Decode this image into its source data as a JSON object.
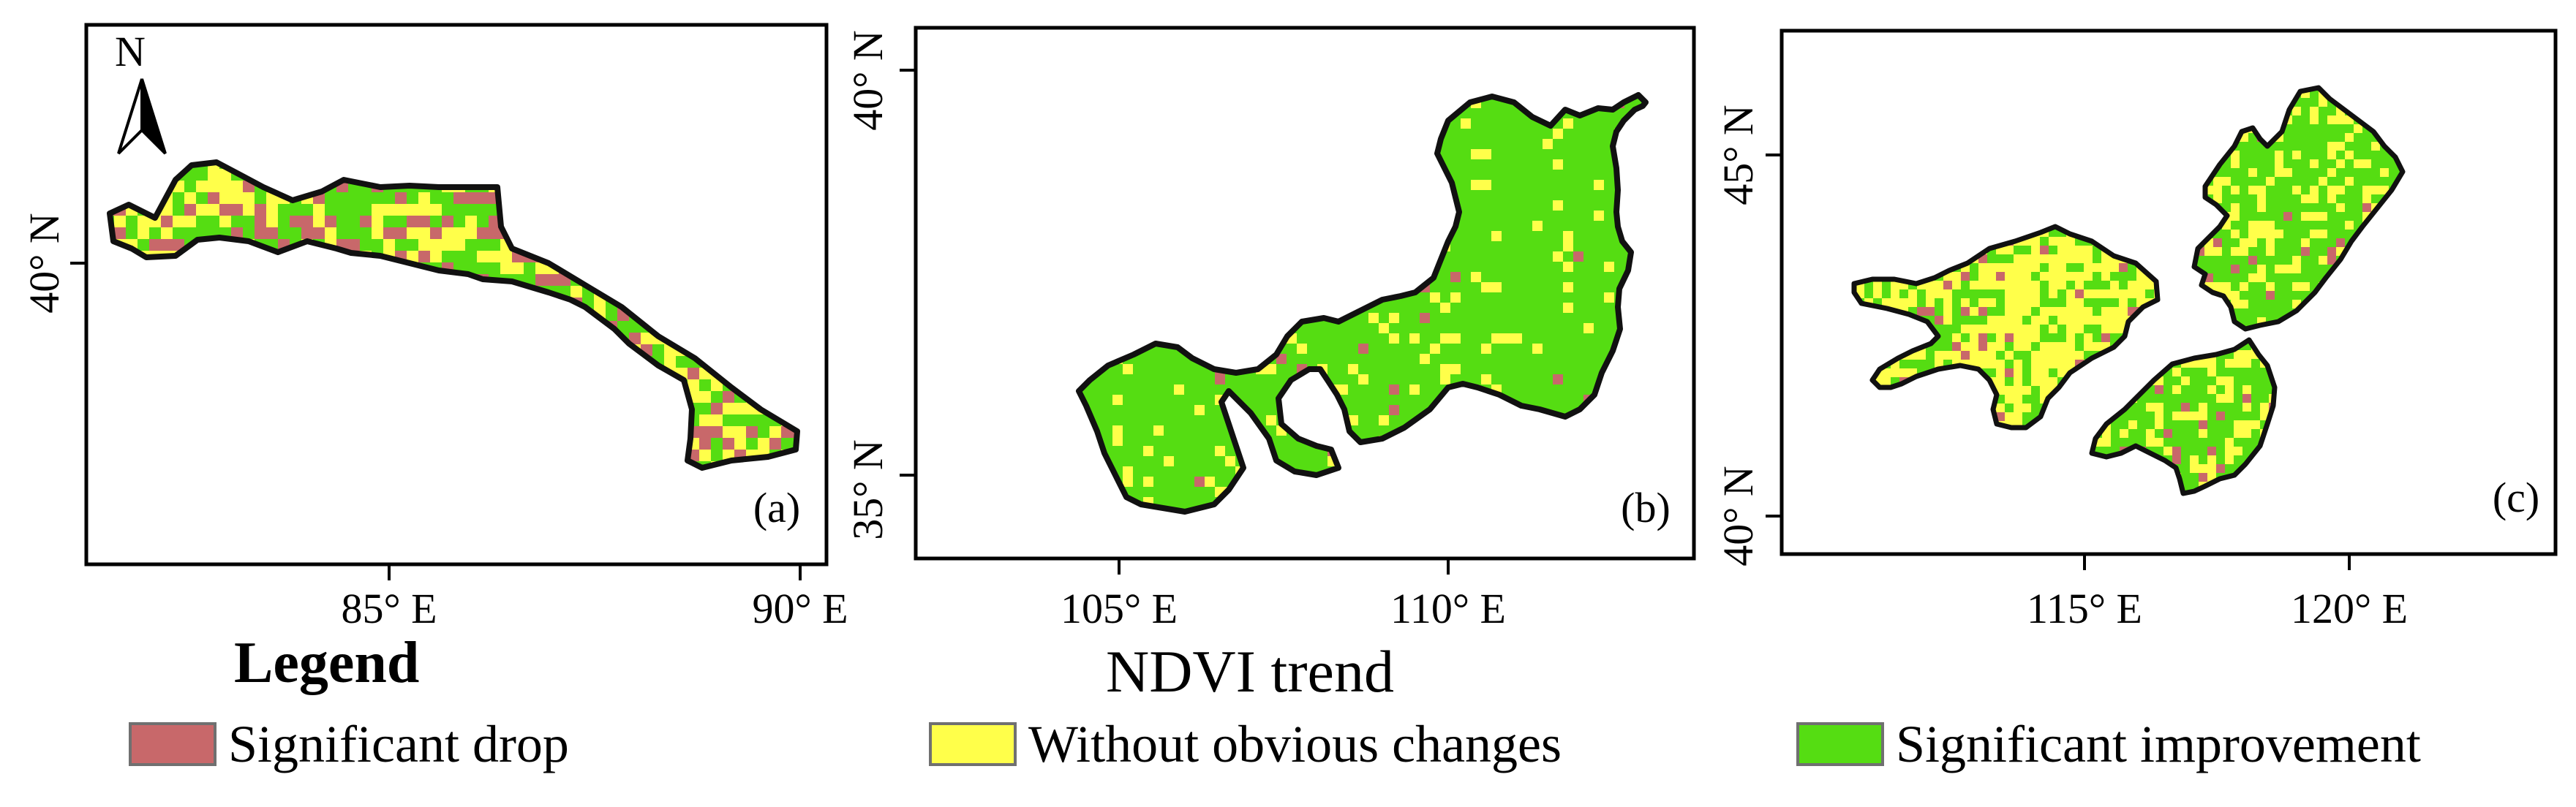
{
  "colors": {
    "significant_drop": "#c8686a",
    "without_obvious_changes": "#ffff4a",
    "significant_improvement": "#55dd12",
    "boundary": "#111111",
    "frame": "#000000"
  },
  "north_arrow": {
    "label": "N"
  },
  "panels": [
    {
      "tag": "(a)",
      "x_ticks": [
        "85° E",
        "90° E"
      ],
      "y_ticks": [
        "40° N"
      ]
    },
    {
      "tag": "(b)",
      "x_ticks": [
        "105° E",
        "110° E"
      ],
      "y_ticks": [
        "40° N",
        "35° N"
      ]
    },
    {
      "tag": "(c)",
      "x_ticks": [
        "115° E",
        "120° E"
      ],
      "y_ticks": [
        "45° N",
        "40° N"
      ]
    }
  ],
  "caption": "NDVI trend",
  "legend": {
    "title": "Legend",
    "items": [
      {
        "label": "Significant drop",
        "color_key": "significant_drop"
      },
      {
        "label": "Without obvious changes",
        "color_key": "without_obvious_changes"
      },
      {
        "label": "Significant improvement",
        "color_key": "significant_improvement"
      }
    ]
  }
}
